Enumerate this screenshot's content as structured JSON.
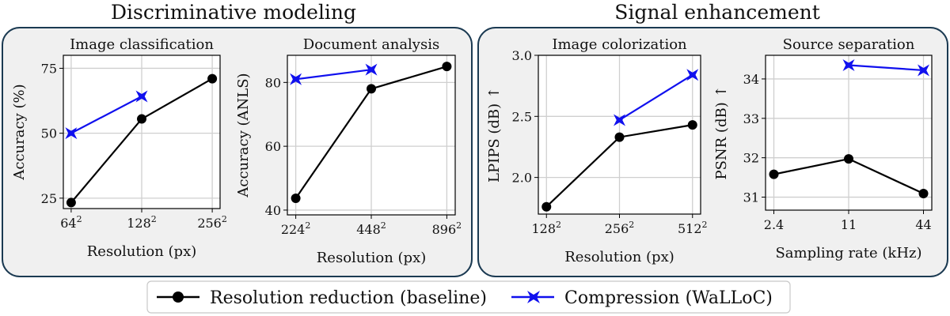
{
  "groups": [
    {
      "title": "Discriminative modeling"
    },
    {
      "title": "Signal enhancement"
    }
  ],
  "legend": {
    "entries": [
      {
        "label": "Resolution reduction (baseline)",
        "color": "#000000",
        "marker": "circle"
      },
      {
        "label": "Compression (WaLLoC)",
        "color": "#1010ee",
        "marker": "bowtie-star"
      }
    ]
  },
  "colors": {
    "baseline": "#000000",
    "compression": "#1010ee",
    "panel_bg": "#f0f0f0",
    "panel_border": "#1b3a52",
    "grid": "#cfcfcf"
  },
  "chart_data": [
    {
      "type": "line",
      "title": "Image classification",
      "xlabel": "Resolution (px)",
      "ylabel": "Accuracy (%)",
      "categories": [
        "64²",
        "128²",
        "256²"
      ],
      "yticks": [
        "25",
        "50",
        "75"
      ],
      "ylim": [
        21,
        80
      ],
      "grid": true,
      "series": [
        {
          "name": "Resolution reduction (baseline)",
          "color": "#000000",
          "marker": "circle",
          "points": [
            [
              0,
              23.3
            ],
            [
              1,
              55.5
            ],
            [
              2,
              71
            ]
          ]
        },
        {
          "name": "Compression (WaLLoC)",
          "color": "#1010ee",
          "marker": "bowtie-star",
          "points": [
            [
              0,
              50
            ],
            [
              1,
              64.2
            ]
          ]
        }
      ]
    },
    {
      "type": "line",
      "title": "Document analysis",
      "xlabel": "Resolution (px)",
      "ylabel": "Accuracy (ANLS)",
      "categories": [
        "224²",
        "448²",
        "896²"
      ],
      "yticks": [
        "40",
        "60",
        "80"
      ],
      "ylim": [
        38.5,
        88.5
      ],
      "grid": true,
      "series": [
        {
          "name": "Resolution reduction (baseline)",
          "color": "#000000",
          "marker": "circle",
          "points": [
            [
              0,
              43.7
            ],
            [
              1,
              78
            ],
            [
              2,
              85
            ]
          ]
        },
        {
          "name": "Compression (WaLLoC)",
          "color": "#1010ee",
          "marker": "bowtie-star",
          "points": [
            [
              0,
              81
            ],
            [
              1,
              84
            ]
          ]
        }
      ]
    },
    {
      "type": "line",
      "title": "Image colorization",
      "xlabel": "Resolution (px)",
      "ylabel": "LPIPS (dB) ↑",
      "categories": [
        "128²",
        "256²",
        "512²"
      ],
      "yticks": [
        "2.0",
        "2.5",
        "3.0"
      ],
      "ylim": [
        1.7,
        3.0
      ],
      "grid": true,
      "series": [
        {
          "name": "Resolution reduction (baseline)",
          "color": "#000000",
          "marker": "circle",
          "points": [
            [
              0,
              1.76
            ],
            [
              1,
              2.33
            ],
            [
              2,
              2.43
            ]
          ]
        },
        {
          "name": "Compression (WaLLoC)",
          "color": "#1010ee",
          "marker": "bowtie-star",
          "points": [
            [
              1,
              2.47
            ],
            [
              2,
              2.84
            ]
          ]
        }
      ]
    },
    {
      "type": "line",
      "title": "Source separation",
      "xlabel": "Sampling rate (kHz)",
      "ylabel": "PSNR (dB) ↑",
      "categories": [
        "2.4",
        "11",
        "44"
      ],
      "yticks": [
        "31",
        "32",
        "33",
        "34"
      ],
      "ylim": [
        30.67,
        34.6
      ],
      "grid": true,
      "series": [
        {
          "name": "Resolution reduction (baseline)",
          "color": "#000000",
          "marker": "circle",
          "points": [
            [
              0,
              31.58
            ],
            [
              1,
              31.97
            ],
            [
              2,
              31.09
            ]
          ]
        },
        {
          "name": "Compression (WaLLoC)",
          "color": "#1010ee",
          "marker": "bowtie-star",
          "points": [
            [
              1,
              34.35
            ],
            [
              2,
              34.22
            ]
          ]
        }
      ]
    }
  ]
}
